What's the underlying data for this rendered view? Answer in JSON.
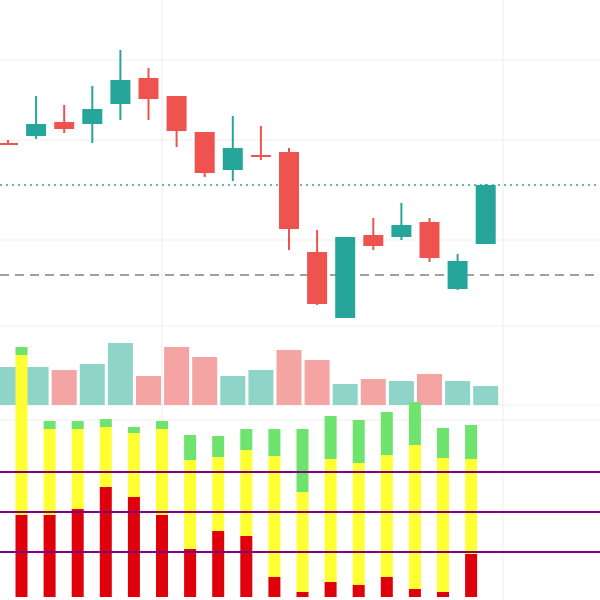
{
  "chart_data": [
    {
      "type": "candlestick",
      "panel": "price",
      "series": [
        {
          "o": 143,
          "h": 140,
          "l": 145,
          "c": 144
        },
        {
          "o": 136,
          "h": 96,
          "l": 139,
          "c": 124
        },
        {
          "o": 122,
          "h": 105,
          "l": 133,
          "c": 129
        },
        {
          "o": 124,
          "h": 86,
          "l": 143,
          "c": 109
        },
        {
          "o": 104,
          "h": 50,
          "l": 120,
          "c": 80
        },
        {
          "o": 78,
          "h": 68,
          "l": 120,
          "c": 99
        },
        {
          "o": 96,
          "h": 96,
          "l": 147,
          "c": 131
        },
        {
          "o": 132,
          "h": 132,
          "l": 177,
          "c": 173
        },
        {
          "o": 170,
          "h": 116,
          "l": 181,
          "c": 148
        },
        {
          "o": 155,
          "h": 126,
          "l": 160,
          "c": 155
        },
        {
          "o": 152,
          "h": 148,
          "l": 250,
          "c": 229
        },
        {
          "o": 252,
          "h": 230,
          "l": 305,
          "c": 304
        },
        {
          "o": 318,
          "h": 238,
          "l": 318,
          "c": 237
        },
        {
          "o": 235,
          "h": 218,
          "l": 250,
          "c": 246
        },
        {
          "o": 237,
          "h": 203,
          "l": 240,
          "c": 225
        },
        {
          "o": 222,
          "h": 218,
          "l": 262,
          "c": 258
        },
        {
          "o": 289,
          "h": 254,
          "l": 290,
          "c": 261
        },
        {
          "o": 244,
          "h": 184,
          "l": 244,
          "c": 185
        }
      ],
      "reference_lines": [
        {
          "style": "dotted",
          "value": 185
        },
        {
          "style": "dashed",
          "value": 275
        }
      ]
    },
    {
      "type": "bar",
      "panel": "volume",
      "values": [
        38,
        38,
        35,
        41,
        62,
        29,
        58,
        48,
        29,
        35,
        55,
        45,
        21,
        26,
        24,
        31,
        24,
        19
      ],
      "directions": [
        "up",
        "up",
        "down",
        "up",
        "up",
        "down",
        "down",
        "down",
        "up",
        "up",
        "down",
        "down",
        "up",
        "down",
        "up",
        "down",
        "up",
        "up"
      ]
    },
    {
      "type": "stacked_bar",
      "panel": "indicator",
      "stack_labels": [
        "red",
        "yellow",
        "green"
      ],
      "series": [
        {
          "red": 82,
          "yellow": 160,
          "green": 8
        },
        {
          "red": 82,
          "yellow": 86,
          "green": 8
        },
        {
          "red": 88,
          "yellow": 80,
          "green": 8
        },
        {
          "red": 110,
          "yellow": 60,
          "green": 8
        },
        {
          "red": 100,
          "yellow": 64,
          "green": 6
        },
        {
          "red": 82,
          "yellow": 86,
          "green": 8
        },
        {
          "red": 48,
          "yellow": 89,
          "green": 25
        },
        {
          "red": 66,
          "yellow": 74,
          "green": 21
        },
        {
          "red": 61,
          "yellow": 86,
          "green": 21
        },
        {
          "red": 20,
          "yellow": 121,
          "green": 27
        },
        {
          "red": 5,
          "yellow": 100,
          "green": 63
        },
        {
          "red": 15,
          "yellow": 123,
          "green": 43
        },
        {
          "red": 12,
          "yellow": 122,
          "green": 43
        },
        {
          "red": 20,
          "yellow": 122,
          "green": 43
        },
        {
          "red": 8,
          "yellow": 144,
          "green": 43
        },
        {
          "red": 5,
          "yellow": 134,
          "green": 30
        },
        {
          "red": 43,
          "yellow": 95,
          "green": 34
        }
      ],
      "reference_lines": [
        {
          "value": 472
        },
        {
          "value": 512
        },
        {
          "value": 552
        }
      ]
    }
  ],
  "colors": {
    "up": "#26a69a",
    "down": "#ef5350",
    "volume_up": "#8fd4c9",
    "volume_down": "#f4a4a3",
    "ind_red": "#e0000b",
    "ind_yellow": "#ffff33",
    "ind_green": "#6ee36e",
    "ref_teal": "#26a69a",
    "ref_gray": "#808080",
    "indicator_line": "#800080"
  }
}
